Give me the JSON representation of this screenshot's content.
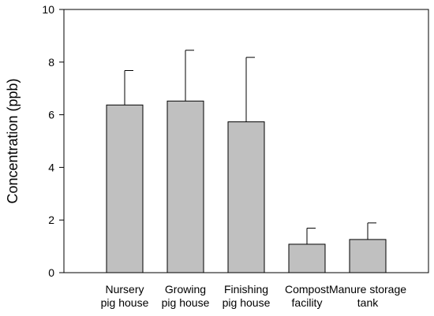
{
  "chart_data": {
    "type": "bar",
    "title": "",
    "xlabel": "",
    "ylabel": "Concentration (ppb)",
    "ylim": [
      0,
      10
    ],
    "yticks": [
      "0",
      "2",
      "4",
      "6",
      "8",
      "10"
    ],
    "categories": [
      [
        "Nursery",
        "pig house"
      ],
      [
        "Growing",
        "pig house"
      ],
      [
        "Finishing",
        "pig house"
      ],
      [
        "Compost",
        "facility"
      ],
      [
        "Manure storage",
        "tank"
      ]
    ],
    "series": [
      {
        "values": [
          6.37,
          6.52,
          5.73,
          1.08,
          1.26
        ],
        "error_plus": [
          1.31,
          1.93,
          2.45,
          0.61,
          0.63
        ]
      }
    ],
    "bar_color": "#c0c0c0",
    "grid": false,
    "legend": "none"
  }
}
